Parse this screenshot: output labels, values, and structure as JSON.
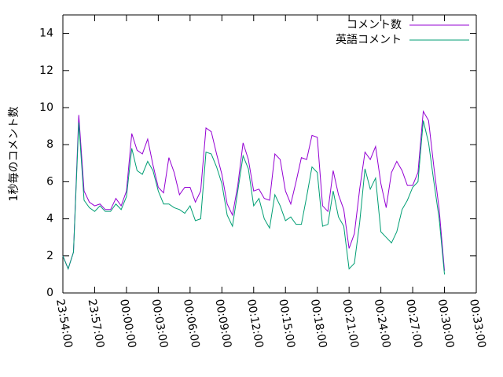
{
  "chart_data": {
    "type": "line",
    "ylabel": "1秒毎のコメント数",
    "x": [
      "23:54:00",
      "23:54:30",
      "23:55:00",
      "23:55:30",
      "23:56:00",
      "23:56:30",
      "23:57:00",
      "23:57:30",
      "23:58:00",
      "23:58:30",
      "23:59:00",
      "23:59:30",
      "00:00:00",
      "00:00:30",
      "00:01:00",
      "00:01:30",
      "00:02:00",
      "00:02:30",
      "00:03:00",
      "00:03:30",
      "00:04:00",
      "00:04:30",
      "00:05:00",
      "00:05:30",
      "00:06:00",
      "00:06:30",
      "00:07:00",
      "00:07:30",
      "00:08:00",
      "00:08:30",
      "00:09:00",
      "00:09:30",
      "00:10:00",
      "00:10:30",
      "00:11:00",
      "00:11:30",
      "00:12:00",
      "00:12:30",
      "00:13:00",
      "00:13:30",
      "00:14:00",
      "00:14:30",
      "00:15:00",
      "00:15:30",
      "00:16:00",
      "00:16:30",
      "00:17:00",
      "00:17:30",
      "00:18:00",
      "00:18:30",
      "00:19:00",
      "00:19:30",
      "00:20:00",
      "00:20:30",
      "00:21:00",
      "00:21:30",
      "00:22:00",
      "00:22:30",
      "00:23:00",
      "00:23:30",
      "00:24:00",
      "00:24:30",
      "00:25:00",
      "00:25:30",
      "00:26:00",
      "00:26:30",
      "00:27:00",
      "00:27:30",
      "00:28:00",
      "00:28:30",
      "00:29:00",
      "00:29:30",
      "00:30:00"
    ],
    "series": [
      {
        "name": "コメント数",
        "color": "#9400d3",
        "values": [
          2.0,
          1.3,
          2.2,
          9.6,
          5.5,
          4.9,
          4.7,
          4.8,
          4.5,
          4.5,
          5.1,
          4.7,
          5.5,
          8.6,
          7.7,
          7.5,
          8.3,
          6.9,
          5.7,
          5.4,
          7.3,
          6.5,
          5.3,
          5.7,
          5.7,
          4.9,
          5.5,
          8.9,
          8.7,
          7.5,
          6.4,
          4.8,
          4.2,
          5.8,
          8.1,
          7.2,
          5.5,
          5.6,
          5.1,
          5.0,
          7.5,
          7.2,
          5.5,
          4.8,
          6.0,
          7.3,
          7.2,
          8.5,
          8.4,
          4.7,
          4.4,
          6.6,
          5.3,
          4.5,
          2.4,
          3.2,
          5.6,
          7.6,
          7.2,
          7.9,
          5.9,
          4.6,
          6.5,
          7.1,
          6.6,
          5.8,
          5.8,
          6.5,
          9.8,
          9.3,
          6.8,
          4.5,
          1.2
        ]
      },
      {
        "name": "英語コメント",
        "color": "#009e73",
        "values": [
          2.0,
          1.3,
          2.2,
          9.2,
          5.0,
          4.6,
          4.4,
          4.7,
          4.4,
          4.4,
          4.8,
          4.5,
          5.2,
          7.8,
          6.6,
          6.4,
          7.1,
          6.6,
          5.5,
          4.8,
          4.8,
          4.6,
          4.5,
          4.3,
          4.7,
          3.9,
          4.0,
          7.6,
          7.5,
          6.8,
          5.9,
          4.2,
          3.6,
          5.5,
          7.4,
          6.7,
          4.7,
          5.1,
          4.0,
          3.5,
          5.3,
          4.7,
          3.9,
          4.1,
          3.7,
          3.7,
          5.2,
          6.8,
          6.5,
          3.6,
          3.7,
          5.5,
          4.1,
          3.6,
          1.3,
          1.6,
          3.8,
          6.7,
          5.6,
          6.2,
          3.3,
          3.0,
          2.7,
          3.3,
          4.5,
          5.0,
          5.7,
          6.0,
          9.3,
          8.1,
          6.0,
          4.0,
          1.0
        ]
      }
    ],
    "xlim": [
      "23:54:00",
      "00:33:00"
    ],
    "xticks": [
      "23:54:00",
      "23:57:00",
      "00:00:00",
      "00:03:00",
      "00:06:00",
      "00:09:00",
      "00:12:00",
      "00:15:00",
      "00:18:00",
      "00:21:00",
      "00:24:00",
      "00:27:00",
      "00:30:00",
      "00:33:00"
    ],
    "ylim": [
      0,
      15
    ],
    "yticks": [
      0,
      2,
      4,
      6,
      8,
      10,
      12,
      14
    ],
    "legend": "top-right",
    "grid": false
  }
}
